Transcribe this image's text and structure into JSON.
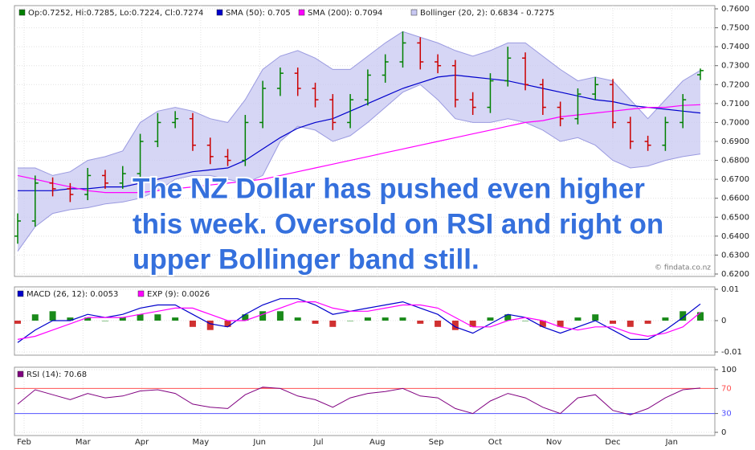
{
  "months": [
    "Feb",
    "Mar",
    "Apr",
    "May",
    "Jun",
    "Jul",
    "Aug",
    "Sep",
    "Oct",
    "Nov",
    "Dec",
    "Jan"
  ],
  "chart_data": [
    {
      "type": "ohlc",
      "ohlc": {
        "name": "Op:0.7252, Hi:0.7285, Lo:0.7224, Cl:0.7274",
        "up_color": "#008000",
        "down_color": "#cc0000",
        "open": [
          0.64,
          0.648,
          0.668,
          0.665,
          0.662,
          0.672,
          0.668,
          0.673,
          0.69,
          0.7,
          0.702,
          0.688,
          0.682,
          0.68,
          0.7,
          0.718,
          0.726,
          0.718,
          0.712,
          0.7,
          0.712,
          0.725,
          0.732,
          0.742,
          0.732,
          0.73,
          0.712,
          0.708,
          0.722,
          0.734,
          0.72,
          0.708,
          0.702,
          0.715,
          0.72,
          0.7,
          0.69,
          0.688,
          0.7,
          0.7252
        ],
        "high": [
          0.652,
          0.672,
          0.671,
          0.668,
          0.676,
          0.675,
          0.677,
          0.694,
          0.705,
          0.706,
          0.705,
          0.692,
          0.686,
          0.704,
          0.722,
          0.729,
          0.729,
          0.721,
          0.715,
          0.715,
          0.728,
          0.736,
          0.748,
          0.745,
          0.736,
          0.733,
          0.716,
          0.726,
          0.74,
          0.737,
          0.723,
          0.711,
          0.718,
          0.724,
          0.723,
          0.703,
          0.693,
          0.703,
          0.715,
          0.7285
        ],
        "low": [
          0.636,
          0.645,
          0.661,
          0.658,
          0.659,
          0.665,
          0.665,
          0.67,
          0.687,
          0.697,
          0.685,
          0.678,
          0.677,
          0.677,
          0.697,
          0.714,
          0.714,
          0.708,
          0.696,
          0.697,
          0.709,
          0.721,
          0.729,
          0.728,
          0.726,
          0.708,
          0.704,
          0.705,
          0.719,
          0.717,
          0.704,
          0.698,
          0.699,
          0.712,
          0.697,
          0.686,
          0.685,
          0.685,
          0.697,
          0.7224
        ],
        "close": [
          0.648,
          0.668,
          0.665,
          0.662,
          0.672,
          0.668,
          0.673,
          0.69,
          0.7,
          0.702,
          0.688,
          0.682,
          0.68,
          0.7,
          0.718,
          0.726,
          0.718,
          0.712,
          0.7,
          0.712,
          0.725,
          0.732,
          0.742,
          0.732,
          0.73,
          0.712,
          0.708,
          0.722,
          0.734,
          0.72,
          0.708,
          0.702,
          0.715,
          0.72,
          0.7,
          0.69,
          0.688,
          0.7,
          0.712,
          0.7274
        ]
      },
      "series": [
        {
          "name": "SMA (50): 0.705",
          "color": "#0000cc",
          "values": [
            0.664,
            0.664,
            0.664,
            0.665,
            0.665,
            0.666,
            0.666,
            0.668,
            0.67,
            0.672,
            0.674,
            0.675,
            0.676,
            0.68,
            0.686,
            0.692,
            0.697,
            0.7,
            0.702,
            0.706,
            0.71,
            0.714,
            0.718,
            0.721,
            0.724,
            0.725,
            0.724,
            0.723,
            0.722,
            0.72,
            0.718,
            0.716,
            0.714,
            0.712,
            0.711,
            0.709,
            0.708,
            0.707,
            0.706,
            0.705
          ]
        },
        {
          "name": "SMA (200): 0.7094",
          "color": "#ff00ff",
          "values": [
            0.672,
            0.67,
            0.668,
            0.666,
            0.664,
            0.663,
            0.663,
            0.663,
            0.664,
            0.665,
            0.666,
            0.667,
            0.668,
            0.669,
            0.67,
            0.672,
            0.674,
            0.676,
            0.678,
            0.68,
            0.682,
            0.684,
            0.686,
            0.688,
            0.69,
            0.692,
            0.694,
            0.696,
            0.698,
            0.7,
            0.701,
            0.703,
            0.704,
            0.705,
            0.706,
            0.707,
            0.708,
            0.708,
            0.709,
            0.7094
          ]
        }
      ],
      "bands": {
        "name": "Bollinger (20, 2): 0.6834 - 0.7275",
        "color": "#c8c8f2",
        "line_color": "#9a9ae0",
        "upper": [
          0.676,
          0.676,
          0.672,
          0.674,
          0.68,
          0.682,
          0.685,
          0.7,
          0.706,
          0.708,
          0.706,
          0.702,
          0.7,
          0.712,
          0.728,
          0.735,
          0.738,
          0.734,
          0.728,
          0.728,
          0.735,
          0.742,
          0.748,
          0.745,
          0.742,
          0.738,
          0.735,
          0.738,
          0.742,
          0.742,
          0.735,
          0.728,
          0.722,
          0.724,
          0.722,
          0.712,
          0.702,
          0.712,
          0.722,
          0.7275
        ],
        "lower": [
          0.632,
          0.645,
          0.652,
          0.654,
          0.655,
          0.657,
          0.658,
          0.66,
          0.664,
          0.67,
          0.672,
          0.672,
          0.67,
          0.668,
          0.672,
          0.69,
          0.698,
          0.696,
          0.69,
          0.693,
          0.7,
          0.708,
          0.716,
          0.72,
          0.712,
          0.702,
          0.7,
          0.7,
          0.702,
          0.7,
          0.696,
          0.69,
          0.692,
          0.688,
          0.68,
          0.676,
          0.677,
          0.68,
          0.682,
          0.6834
        ]
      },
      "ylim": [
        0.62,
        0.76
      ],
      "yticks": [
        {
          "value": 0.62,
          "label": "0.6200"
        },
        {
          "value": 0.63,
          "label": "0.6300"
        },
        {
          "value": 0.64,
          "label": "0.6400"
        },
        {
          "value": 0.65,
          "label": "0.6500"
        },
        {
          "value": 0.66,
          "label": "0.6600"
        },
        {
          "value": 0.67,
          "label": "0.6700"
        },
        {
          "value": 0.68,
          "label": "0.6800"
        },
        {
          "value": 0.69,
          "label": "0.6900"
        },
        {
          "value": 0.7,
          "label": "0.7000"
        },
        {
          "value": 0.71,
          "label": "0.7100"
        },
        {
          "value": 0.72,
          "label": "0.7200"
        },
        {
          "value": 0.73,
          "label": "0.7300"
        },
        {
          "value": 0.74,
          "label": "0.7400"
        },
        {
          "value": 0.75,
          "label": "0.7500"
        },
        {
          "value": 0.76,
          "label": "0.7600"
        }
      ],
      "grid": true,
      "annotation": [
        "The NZ Dollar has pushed even higher",
        "this week. Oversold on RSI and right on",
        "upper Bollinger band still."
      ],
      "watermark": "© findata.co.nz"
    },
    {
      "type": "macd",
      "series": [
        {
          "name": "MACD (26, 12): 0.0053",
          "color": "#0000cc",
          "values": [
            -0.007,
            -0.003,
            0.0,
            0.0,
            0.002,
            0.001,
            0.002,
            0.004,
            0.005,
            0.005,
            0.002,
            -0.001,
            -0.002,
            0.002,
            0.005,
            0.007,
            0.007,
            0.005,
            0.002,
            0.003,
            0.004,
            0.005,
            0.006,
            0.004,
            0.002,
            -0.002,
            -0.004,
            -0.001,
            0.002,
            0.001,
            -0.002,
            -0.004,
            -0.002,
            0.0,
            -0.003,
            -0.006,
            -0.006,
            -0.003,
            0.001,
            0.0053
          ]
        },
        {
          "name": "EXP (9): 0.0026",
          "color": "#ff00ff",
          "values": [
            -0.006,
            -0.005,
            -0.003,
            -0.001,
            0.001,
            0.001,
            0.001,
            0.002,
            0.003,
            0.004,
            0.004,
            0.002,
            0.0,
            0.0,
            0.002,
            0.004,
            0.006,
            0.006,
            0.004,
            0.003,
            0.003,
            0.004,
            0.005,
            0.005,
            0.004,
            0.001,
            -0.002,
            -0.002,
            0.0,
            0.001,
            0.0,
            -0.002,
            -0.003,
            -0.002,
            -0.002,
            -0.004,
            -0.005,
            -0.004,
            -0.002,
            0.0026
          ]
        }
      ],
      "histogram": {
        "up_color": "#1a8a1a",
        "down_color": "#d03030",
        "values": [
          -0.001,
          0.002,
          0.003,
          0.001,
          0.001,
          0,
          0.001,
          0.002,
          0.002,
          0.001,
          -0.002,
          -0.003,
          -0.002,
          0.002,
          0.003,
          0.003,
          0.001,
          -0.001,
          -0.002,
          0,
          0.001,
          0.001,
          0.001,
          -0.001,
          -0.002,
          -0.003,
          -0.002,
          0.001,
          0.002,
          0,
          -0.002,
          -0.002,
          0.001,
          0.002,
          -0.001,
          -0.002,
          -0.001,
          0.001,
          0.003,
          0.0027
        ]
      },
      "ylim": [
        -0.01,
        0.01
      ],
      "yticks": [
        -0.01,
        0,
        0.01
      ]
    },
    {
      "type": "rsi",
      "series": [
        {
          "name": "RSI (14): 70.68",
          "color": "#800080",
          "values": [
            45,
            68,
            60,
            52,
            62,
            55,
            58,
            66,
            68,
            62,
            45,
            40,
            38,
            60,
            72,
            70,
            58,
            52,
            40,
            55,
            62,
            65,
            70,
            58,
            55,
            38,
            30,
            50,
            62,
            55,
            40,
            30,
            55,
            60,
            35,
            28,
            38,
            55,
            68,
            70.68
          ]
        }
      ],
      "levels": [
        {
          "value": 70,
          "color": "#ff5050",
          "fill": "#ff6060"
        },
        {
          "value": 30,
          "color": "#5050ff",
          "fill": "#6060ff"
        }
      ],
      "ylim": [
        0,
        100
      ],
      "yticks": [
        0,
        30,
        70,
        100
      ]
    }
  ]
}
